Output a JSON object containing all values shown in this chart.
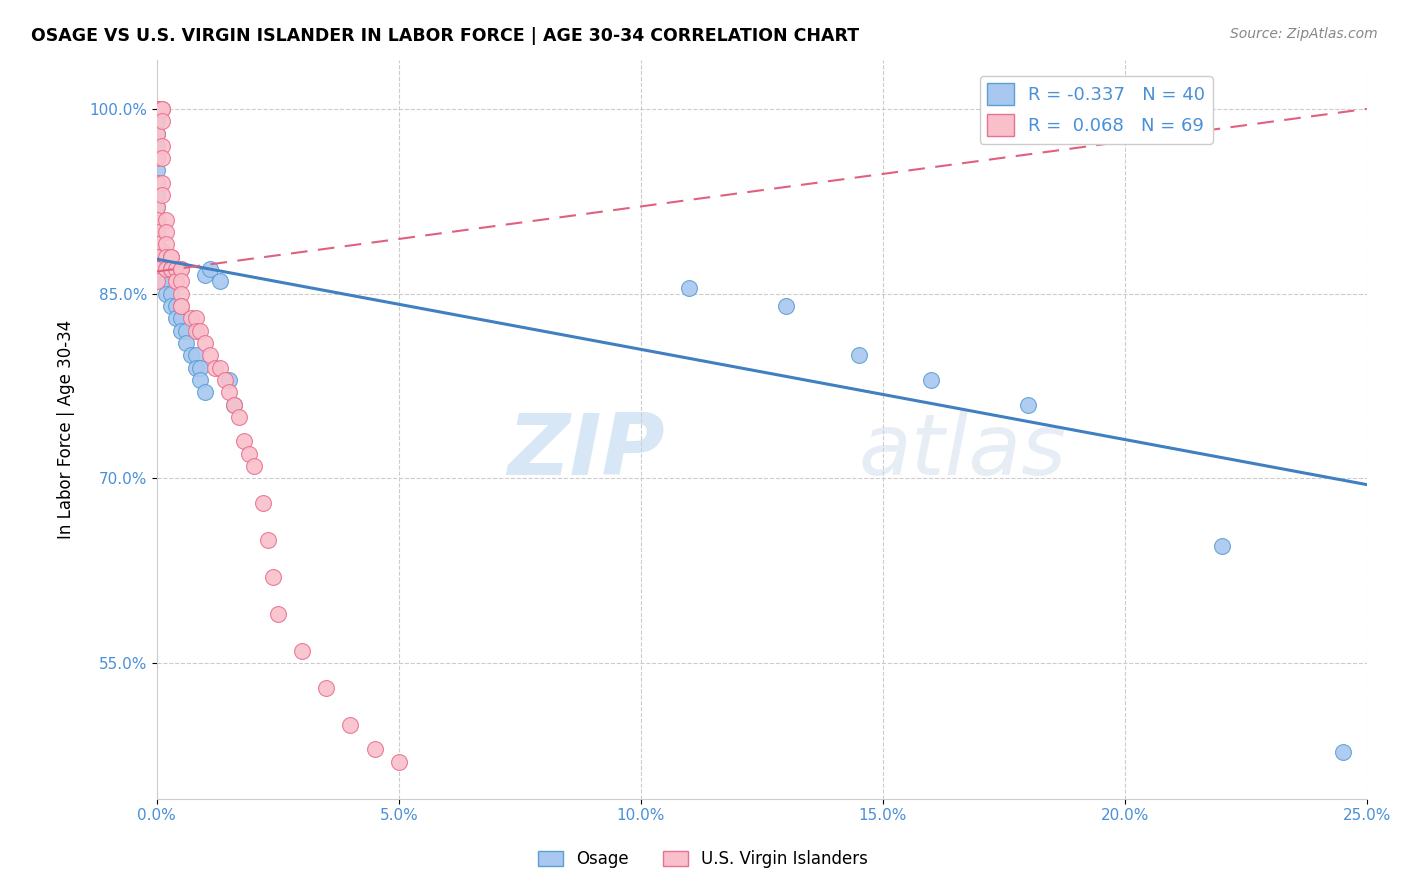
{
  "title": "OSAGE VS U.S. VIRGIN ISLANDER IN LABOR FORCE | AGE 30-34 CORRELATION CHART",
  "source": "Source: ZipAtlas.com",
  "ylabel": "In Labor Force | Age 30-34",
  "xlim": [
    0.0,
    0.25
  ],
  "ylim": [
    0.44,
    1.04
  ],
  "xticks": [
    0.0,
    0.05,
    0.1,
    0.15,
    0.2,
    0.25
  ],
  "xticklabels": [
    "0.0%",
    "5.0%",
    "10.0%",
    "15.0%",
    "20.0%",
    "25.0%"
  ],
  "yticks": [
    0.55,
    0.7,
    0.85,
    1.0
  ],
  "yticklabels": [
    "55.0%",
    "70.0%",
    "85.0%",
    "100.0%"
  ],
  "blue_fill": "#A8C8F0",
  "blue_edge": "#5A9FD4",
  "pink_fill": "#F9C0CB",
  "pink_edge": "#E87090",
  "blue_line_color": "#4080C0",
  "pink_line_color": "#E06080",
  "grid_color": "#CCCCCC",
  "R_blue": -0.337,
  "N_blue": 40,
  "R_pink": 0.068,
  "N_pink": 69,
  "watermark_zip": "ZIP",
  "watermark_atlas": "atlas",
  "legend_label_blue": "Osage",
  "legend_label_pink": "U.S. Virgin Islanders",
  "blue_line_x0": 0.0,
  "blue_line_y0": 0.878,
  "blue_line_x1": 0.25,
  "blue_line_y1": 0.695,
  "pink_line_x0": 0.0,
  "pink_line_y0": 0.868,
  "pink_line_x1": 0.25,
  "pink_line_y1": 1.0,
  "blue_points_x": [
    0.0,
    0.0,
    0.0,
    0.0,
    0.0,
    0.0,
    0.0,
    0.0,
    0.0,
    0.001,
    0.001,
    0.001,
    0.002,
    0.002,
    0.003,
    0.003,
    0.004,
    0.004,
    0.005,
    0.005,
    0.006,
    0.006,
    0.007,
    0.008,
    0.008,
    0.009,
    0.009,
    0.01,
    0.01,
    0.011,
    0.013,
    0.015,
    0.016,
    0.11,
    0.13,
    0.145,
    0.16,
    0.18,
    0.22,
    0.245
  ],
  "blue_points_y": [
    1.0,
    0.99,
    0.98,
    0.97,
    0.96,
    0.95,
    0.94,
    0.93,
    0.92,
    0.885,
    0.87,
    0.86,
    0.86,
    0.85,
    0.85,
    0.84,
    0.84,
    0.83,
    0.83,
    0.82,
    0.82,
    0.81,
    0.8,
    0.8,
    0.79,
    0.79,
    0.78,
    0.77,
    0.865,
    0.87,
    0.86,
    0.78,
    0.76,
    0.855,
    0.84,
    0.8,
    0.78,
    0.76,
    0.645,
    0.478
  ],
  "pink_points_x": [
    0.0,
    0.0,
    0.0,
    0.0,
    0.0,
    0.0,
    0.0,
    0.0,
    0.0,
    0.0,
    0.0,
    0.0,
    0.0,
    0.0,
    0.0,
    0.0,
    0.0,
    0.0,
    0.0,
    0.0,
    0.001,
    0.001,
    0.001,
    0.001,
    0.001,
    0.001,
    0.001,
    0.002,
    0.002,
    0.002,
    0.002,
    0.002,
    0.003,
    0.003,
    0.003,
    0.003,
    0.004,
    0.004,
    0.004,
    0.005,
    0.005,
    0.005,
    0.005,
    0.005,
    0.005,
    0.007,
    0.008,
    0.008,
    0.009,
    0.01,
    0.011,
    0.012,
    0.013,
    0.014,
    0.015,
    0.016,
    0.017,
    0.018,
    0.019,
    0.02,
    0.022,
    0.023,
    0.024,
    0.025,
    0.03,
    0.035,
    0.04,
    0.045,
    0.05
  ],
  "pink_points_y": [
    1.0,
    1.0,
    1.0,
    1.0,
    1.0,
    1.0,
    1.0,
    1.0,
    0.98,
    0.96,
    0.94,
    0.92,
    0.91,
    0.9,
    0.89,
    0.88,
    0.88,
    0.87,
    0.87,
    0.86,
    1.0,
    1.0,
    0.99,
    0.97,
    0.96,
    0.94,
    0.93,
    0.91,
    0.9,
    0.89,
    0.88,
    0.87,
    0.88,
    0.88,
    0.87,
    0.87,
    0.87,
    0.86,
    0.86,
    0.87,
    0.87,
    0.86,
    0.85,
    0.84,
    0.84,
    0.83,
    0.83,
    0.82,
    0.82,
    0.81,
    0.8,
    0.79,
    0.79,
    0.78,
    0.77,
    0.76,
    0.75,
    0.73,
    0.72,
    0.71,
    0.68,
    0.65,
    0.62,
    0.59,
    0.56,
    0.53,
    0.5,
    0.48,
    0.47
  ]
}
